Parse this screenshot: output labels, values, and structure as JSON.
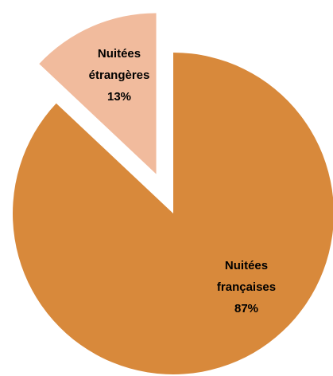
{
  "chart_data": {
    "type": "pie",
    "categories": [
      "Nuitées françaises",
      "Nuitées étrangères"
    ],
    "values": [
      87,
      13
    ],
    "value_labels": [
      "87%",
      "13%"
    ],
    "colors": [
      "#d8893b",
      "#f1bb9d"
    ]
  }
}
